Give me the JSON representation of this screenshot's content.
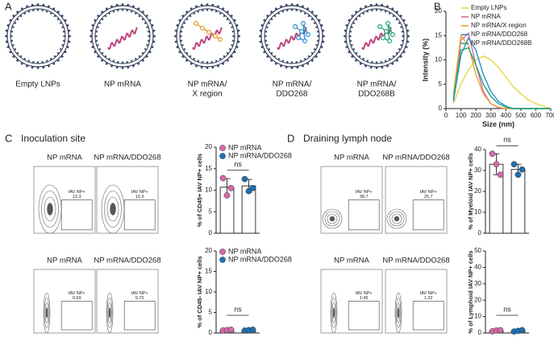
{
  "panel_letters": [
    "A",
    "B",
    "C",
    "D"
  ],
  "lnps": [
    {
      "label": [
        "Empty LNPs"
      ]
    },
    {
      "label": [
        "NP mRNA"
      ]
    },
    {
      "label": [
        "NP mRNA/",
        "X region"
      ]
    },
    {
      "label": [
        "NP mRNA/",
        "DDO268"
      ]
    },
    {
      "label": [
        "NP mRNA/",
        "DDO268B"
      ]
    }
  ],
  "sections": [
    "Inoculation site",
    "Draining lymph node"
  ],
  "flow_panels": [
    {
      "rows": [
        {
          "plots": [
            {
              "title": "NP mRNA",
              "gate": "IAV NP+",
              "value": 13.3
            },
            {
              "title": "NP mRNA/DDO268",
              "gate": "IAV NP+",
              "value": 10.3
            }
          ]
        },
        {
          "plots": [
            {
              "title": "NP mRNA",
              "gate": "IAV NP+",
              "value": 0.69
            },
            {
              "title": "NP mRNA/DDO268",
              "gate": "IAV NP+",
              "value": 0.7,
              "value_label": "0.70"
            }
          ]
        }
      ]
    },
    {
      "rows": [
        {
          "plots": [
            {
              "title": "NP mRNA",
              "gate": "IAV NP+",
              "value": 38.7
            },
            {
              "title": "NP mRNA/DDO268",
              "gate": "IAV NP+",
              "value": 25.7
            }
          ]
        },
        {
          "plots": [
            {
              "title": "NP mRNA",
              "gate": "IAV NP+",
              "value": 1.45
            },
            {
              "title": "NP mRNA/DDO268",
              "gate": "IAV NP+",
              "value": 1.32
            }
          ]
        }
      ]
    }
  ],
  "chart_data": [
    {
      "type": "line",
      "x_label": "Size (nm)",
      "y_label": "Intensity (%)",
      "x": [
        0,
        50,
        100,
        150,
        200,
        250,
        300,
        350,
        400,
        450,
        500,
        550,
        600,
        650,
        700
      ],
      "xlim": [
        0,
        700
      ],
      "xticks": [
        0,
        100,
        200,
        300,
        400,
        500,
        600,
        700
      ],
      "ylim": [
        0,
        20
      ],
      "yticks": [
        0,
        5,
        10,
        15,
        20
      ],
      "legend": "top-right",
      "series": [
        {
          "name": "Empty LNPs",
          "color": "#e6d54a",
          "values": [
            null,
            1,
            5,
            8,
            10,
            10.8,
            10,
            8.5,
            6.5,
            4.5,
            3,
            1.8,
            1,
            0.5,
            0
          ]
        },
        {
          "name": "NP mRNA",
          "color": "#d46aa8",
          "values": [
            null,
            2,
            14,
            15.5,
            9,
            3.5,
            1,
            0.2,
            0,
            0,
            0,
            0,
            0,
            0,
            0
          ]
        },
        {
          "name": "NP mRNA/X region",
          "color": "#f0a030",
          "values": [
            null,
            3,
            15,
            13,
            7,
            3,
            1,
            0.3,
            0,
            0,
            0,
            0,
            0,
            0,
            0
          ]
        },
        {
          "name": "NP mRNA/DDO268",
          "color": "#2a8fd0",
          "values": [
            null,
            1.5,
            11,
            14.5,
            12,
            7,
            3.5,
            1.5,
            0.5,
            0,
            0,
            0,
            0,
            0,
            0
          ]
        },
        {
          "name": "NP mRNA/DDO268B",
          "color": "#1fa67a",
          "values": [
            null,
            2,
            12,
            12.5,
            9,
            5,
            2.5,
            1,
            0.3,
            0,
            0,
            0,
            0,
            0,
            0
          ]
        }
      ]
    },
    {
      "type": "bar",
      "y_label": "% of CD45+ IAV NP+ cells",
      "ylim": [
        0,
        20
      ],
      "yticks": [
        0,
        5,
        10,
        15,
        20
      ],
      "annotation": "ns",
      "legend": "top-left",
      "series": [
        {
          "name": "NP mRNA",
          "color": "#d46aa8",
          "values": [
            10.7
          ],
          "errors": [
            2
          ],
          "points": [
            12.8,
            8.8,
            10.5
          ]
        },
        {
          "name": "NP mRNA/DDO268",
          "color": "#1f6fb0",
          "values": [
            11
          ],
          "errors": [
            1.5
          ],
          "points": [
            12.6,
            9.8,
            10.5
          ]
        }
      ]
    },
    {
      "type": "bar",
      "y_label": "% of CD45- IAV NP+ cells",
      "ylim": [
        0,
        20
      ],
      "yticks": [
        0,
        5,
        10,
        15,
        20
      ],
      "annotation": "ns",
      "legend": "top-left",
      "series": [
        {
          "name": "NP mRNA",
          "color": "#d46aa8",
          "values": [
            0.7
          ],
          "errors": [
            0.1
          ],
          "points": [
            0.6,
            0.7,
            0.8
          ]
        },
        {
          "name": "NP mRNA/DDO268",
          "color": "#1f6fb0",
          "values": [
            0.7
          ],
          "errors": [
            0.1
          ],
          "points": [
            0.6,
            0.7,
            0.8
          ]
        }
      ]
    },
    {
      "type": "bar",
      "y_label": "% of Myeloid  IAV NP+ cells",
      "ylim": [
        0,
        40
      ],
      "yticks": [
        0,
        10,
        20,
        30,
        40
      ],
      "annotation": "ns",
      "series": [
        {
          "color": "#d46aa8",
          "values": [
            33
          ],
          "errors": [
            5
          ],
          "points": [
            38,
            33,
            28
          ]
        },
        {
          "color": "#1f6fb0",
          "values": [
            30.5
          ],
          "errors": [
            2.5
          ],
          "points": [
            33,
            28,
            30.5
          ]
        }
      ]
    },
    {
      "type": "bar",
      "y_label": "% of Lymphoid IAV NP+ cells",
      "ylim": [
        0,
        50
      ],
      "yticks": [
        0,
        10,
        20,
        30,
        40,
        50
      ],
      "annotation": "ns",
      "series": [
        {
          "color": "#d46aa8",
          "values": [
            1.4
          ],
          "errors": [
            0.4
          ],
          "points": [
            1,
            1.5,
            1.7
          ]
        },
        {
          "color": "#1f6fb0",
          "values": [
            1.3
          ],
          "errors": [
            0.4
          ],
          "points": [
            0.9,
            1.3,
            1.7
          ]
        }
      ]
    }
  ]
}
